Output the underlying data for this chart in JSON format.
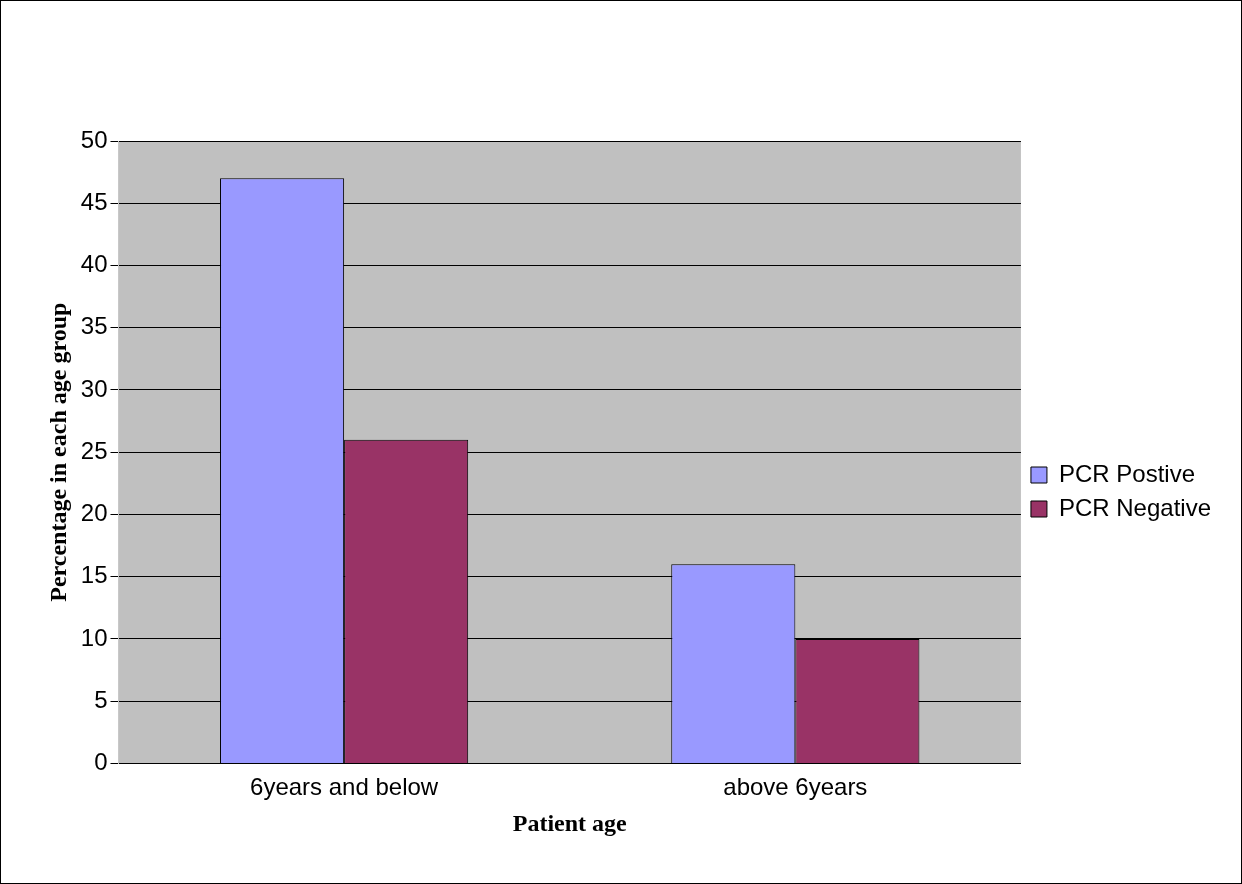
{
  "chart_data": {
    "type": "bar",
    "xlabel": "Patient age",
    "ylabel": "Percentage in each age group",
    "categories": [
      "6years and below",
      "above 6years"
    ],
    "series": [
      {
        "name": "PCR Postive",
        "color": "#9999ff",
        "values": [
          47,
          16
        ]
      },
      {
        "name": "PCR Negative",
        "color": "#993366",
        "values": [
          26,
          10
        ]
      }
    ],
    "ylim": [
      0,
      50
    ],
    "yticks": [
      0,
      5,
      10,
      15,
      20,
      25,
      30,
      35,
      40,
      45,
      50
    ],
    "grid": "y",
    "legend": "right"
  }
}
